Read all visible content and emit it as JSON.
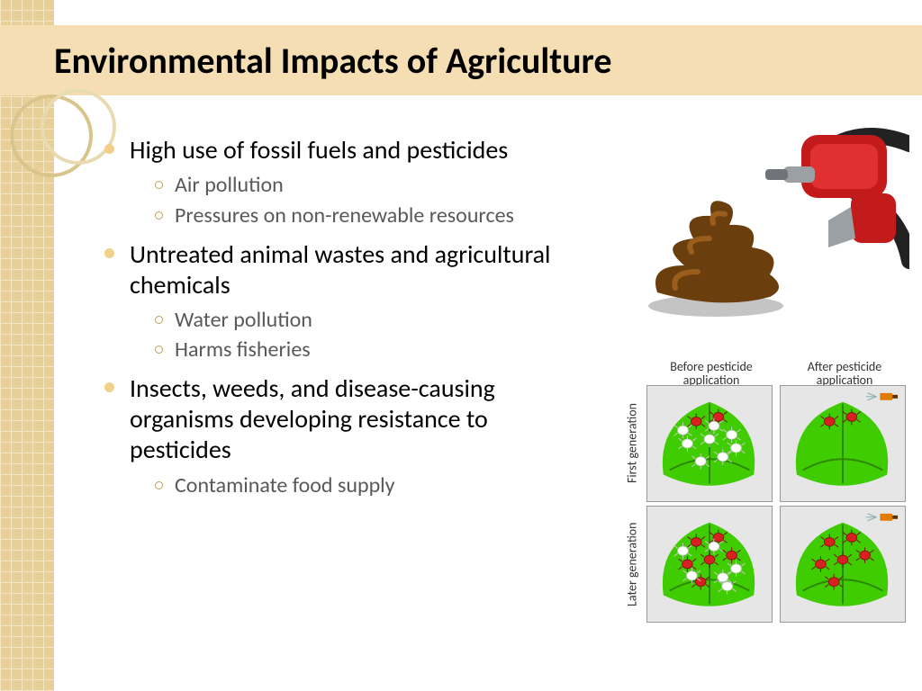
{
  "colors": {
    "title_band_bg": "#f5deb3",
    "side_pattern_bg": "#e8cf97",
    "side_pattern_grid": "#f5e7c4",
    "bullet_l1": "#f2d089",
    "bullet_l2_border": "#bfa15a",
    "text_main": "#000000",
    "text_sub": "#595959",
    "leaf_green": "#3fcc00",
    "leaf_vein": "#2b8800",
    "bug_white_fill": "#ffffff",
    "bug_white_edge": "#cccccc",
    "bug_red": "#d82020",
    "cell_bg": "#e6e6e6",
    "cell_border": "#999999",
    "pump_red": "#c31b1b",
    "pump_dark": "#222222",
    "pump_gray": "#9aa0a4",
    "poop_brown": "#6b3e0e",
    "poop_light": "#9a5d1c",
    "plate_gray": "#c4c4c4"
  },
  "typography": {
    "title_fontsize": 40,
    "title_weight": 700,
    "bullet_l1_fontsize": 28,
    "bullet_l2_fontsize": 24,
    "diagram_label_fontsize": 14,
    "font_family": "Calibri"
  },
  "title": "Environmental Impacts of Agriculture",
  "bullets": [
    {
      "text": "High use of fossil fuels and pesticides",
      "sub": [
        "Air pollution",
        "Pressures on non-renewable resources"
      ]
    },
    {
      "text": "Untreated animal wastes and agricultural chemicals",
      "sub": [
        "Water pollution",
        "Harms fisheries"
      ]
    },
    {
      "text": "Insects, weeds, and disease-causing organisms developing resistance to pesticides",
      "sub": [
        "Contaminate food supply"
      ]
    }
  ],
  "diagram": {
    "type": "infographic",
    "col_labels": [
      "Before pesticide application",
      "After pesticide application"
    ],
    "row_labels": [
      "First generation",
      "Later generation"
    ],
    "cells": [
      {
        "row": 0,
        "col": 0,
        "white_bugs": 8,
        "red_bugs": 2,
        "has_sprayer": false
      },
      {
        "row": 0,
        "col": 1,
        "white_bugs": 0,
        "red_bugs": 2,
        "has_sprayer": true
      },
      {
        "row": 1,
        "col": 0,
        "white_bugs": 6,
        "red_bugs": 6,
        "has_sprayer": false
      },
      {
        "row": 1,
        "col": 1,
        "white_bugs": 0,
        "red_bugs": 6,
        "has_sprayer": true
      }
    ]
  },
  "top_images": {
    "description": "fuel-pump-nozzle-and-manure-pile",
    "pump_color": "#c31b1b",
    "poop_color": "#6b3e0e"
  }
}
